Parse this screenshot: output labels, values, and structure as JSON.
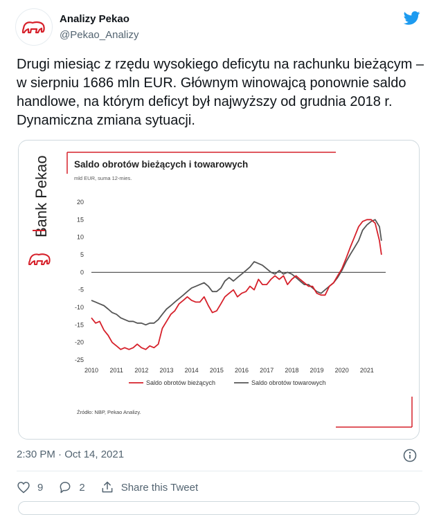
{
  "author": {
    "name": "Analizy Pekao",
    "handle": "@Pekao_Analizy"
  },
  "tweet": {
    "text": "Drugi miesiąc z rzędu wysokiego deficytu na rachunku bieżącym – w sierpniu 1686 mln EUR. Głównym winowajcą ponownie saldo handlowe, na którym deficyt był najwyższy od grudnia 2018 r. Dynamiczna zmiana sytuacji.",
    "timestamp": "2:30 PM · Oct 14, 2021"
  },
  "actions": {
    "likes": "9",
    "replies": "2",
    "share_label": "Share this Tweet"
  },
  "card": {
    "brand": "Bank Pekao",
    "source": "Źródło: NBP, Pekao Analizy."
  },
  "colors": {
    "accent_red": "#d6202a",
    "twitter_blue": "#1d9bf0",
    "series_gray": "#555555"
  },
  "chart_data": {
    "type": "line",
    "title": "Saldo obrotów bieżących i towarowych",
    "subtitle": "mld EUR, suma 12-mies.",
    "xlim": [
      2010,
      2021.75
    ],
    "ylim": [
      -25,
      20
    ],
    "x_ticks": [
      "2010",
      "2011",
      "2012",
      "2013",
      "2014",
      "2015",
      "2016",
      "2017",
      "2018",
      "2019",
      "2020",
      "2021"
    ],
    "y_ticks": [
      "20",
      "15",
      "10",
      "5",
      "0",
      "-5",
      "-10",
      "-15",
      "-20",
      "-25"
    ],
    "legend_position": "bottom",
    "series": [
      {
        "name": "Saldo obrotów bieżących",
        "color": "#d6202a",
        "x": [
          2010.0,
          2010.17,
          2010.33,
          2010.5,
          2010.67,
          2010.83,
          2011.0,
          2011.17,
          2011.33,
          2011.5,
          2011.67,
          2011.83,
          2012.0,
          2012.17,
          2012.33,
          2012.5,
          2012.67,
          2012.83,
          2013.0,
          2013.17,
          2013.33,
          2013.5,
          2013.67,
          2013.83,
          2014.0,
          2014.17,
          2014.33,
          2014.5,
          2014.67,
          2014.83,
          2015.0,
          2015.17,
          2015.33,
          2015.5,
          2015.67,
          2015.83,
          2016.0,
          2016.17,
          2016.33,
          2016.5,
          2016.67,
          2016.83,
          2017.0,
          2017.17,
          2017.33,
          2017.5,
          2017.67,
          2017.83,
          2018.0,
          2018.17,
          2018.33,
          2018.5,
          2018.67,
          2018.83,
          2019.0,
          2019.17,
          2019.33,
          2019.5,
          2019.67,
          2019.83,
          2020.0,
          2020.17,
          2020.33,
          2020.5,
          2020.67,
          2020.83,
          2021.0,
          2021.17,
          2021.33,
          2021.5,
          2021.58
        ],
        "y": [
          -13,
          -14.5,
          -14,
          -16.5,
          -18,
          -20,
          -21,
          -22,
          -21.5,
          -22,
          -21.5,
          -20.5,
          -21.5,
          -22,
          -21,
          -21.5,
          -20.5,
          -16,
          -14,
          -12,
          -11,
          -9,
          -8,
          -7,
          -8,
          -8.5,
          -8.5,
          -7,
          -9.5,
          -11.5,
          -11,
          -9,
          -7,
          -6,
          -5,
          -7,
          -6,
          -5.5,
          -4,
          -5,
          -2,
          -3.5,
          -3.5,
          -2,
          -1,
          -2,
          -1,
          -3.5,
          -2,
          -1,
          -2,
          -3,
          -4,
          -4,
          -6,
          -6.5,
          -6.5,
          -4,
          -3,
          -1,
          1,
          4,
          7,
          10,
          13,
          14.5,
          15,
          15,
          14,
          9,
          5
        ]
      },
      {
        "name": "Saldo obrotów towarowych",
        "color": "#555555",
        "x": [
          2010.0,
          2010.17,
          2010.33,
          2010.5,
          2010.67,
          2010.83,
          2011.0,
          2011.17,
          2011.33,
          2011.5,
          2011.67,
          2011.83,
          2012.0,
          2012.17,
          2012.33,
          2012.5,
          2012.67,
          2012.83,
          2013.0,
          2013.17,
          2013.33,
          2013.5,
          2013.67,
          2013.83,
          2014.0,
          2014.17,
          2014.33,
          2014.5,
          2014.67,
          2014.83,
          2015.0,
          2015.17,
          2015.33,
          2015.5,
          2015.67,
          2015.83,
          2016.0,
          2016.17,
          2016.33,
          2016.5,
          2016.67,
          2016.83,
          2017.0,
          2017.17,
          2017.33,
          2017.5,
          2017.67,
          2017.83,
          2018.0,
          2018.17,
          2018.33,
          2018.5,
          2018.67,
          2018.83,
          2019.0,
          2019.17,
          2019.33,
          2019.5,
          2019.67,
          2019.83,
          2020.0,
          2020.17,
          2020.33,
          2020.5,
          2020.67,
          2020.83,
          2021.0,
          2021.17,
          2021.33,
          2021.5,
          2021.58
        ],
        "y": [
          -8,
          -8.5,
          -9,
          -9.5,
          -10.5,
          -11.5,
          -12,
          -13,
          -13.5,
          -14,
          -14,
          -14.5,
          -14.5,
          -15,
          -14.5,
          -14.5,
          -13.5,
          -12,
          -10.5,
          -9.5,
          -8.5,
          -7.5,
          -6.5,
          -5.5,
          -4.5,
          -4,
          -3.5,
          -3,
          -4,
          -5.5,
          -5.5,
          -4.5,
          -2.5,
          -1.5,
          -2.5,
          -1.5,
          -0.5,
          0.5,
          1.5,
          3,
          2.5,
          2,
          1,
          0,
          -0.5,
          0.5,
          -0.5,
          0,
          -0.5,
          -1.5,
          -2.5,
          -3.5,
          -3.5,
          -4.5,
          -5.5,
          -6,
          -5,
          -4,
          -3,
          -1.5,
          0.5,
          3,
          5,
          7,
          9,
          12,
          13.5,
          14.5,
          15,
          13,
          9
        ]
      }
    ]
  }
}
